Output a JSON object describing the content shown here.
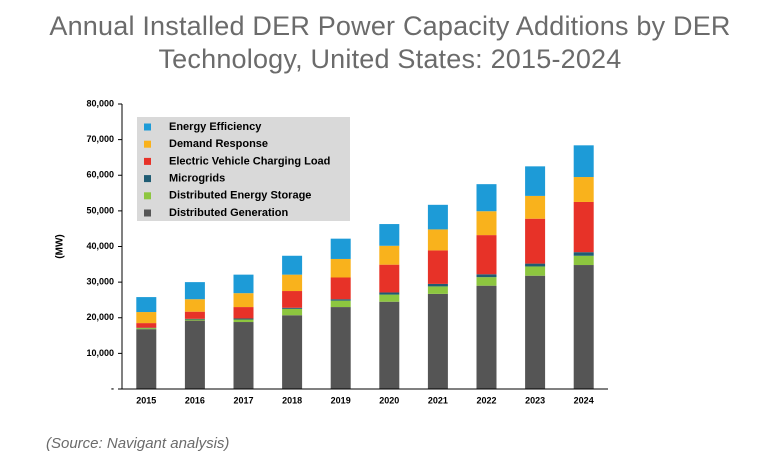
{
  "chart_data": {
    "type": "stacked_bar",
    "title": "Annual Installed DER Power Capacity Additions by DER Technology, United States: 2015-2024",
    "y_label": "(MW)",
    "source": "(Source: Navigant analysis)",
    "categories": [
      "2015",
      "2016",
      "2017",
      "2018",
      "2019",
      "2020",
      "2021",
      "2022",
      "2023",
      "2024"
    ],
    "series": [
      {
        "name": "Distributed Generation",
        "color": "#555555",
        "values": [
          16800,
          19200,
          18800,
          20700,
          23000,
          24500,
          26700,
          29000,
          31800,
          34800
        ]
      },
      {
        "name": "Distributed Energy Storage",
        "color": "#8dc63f",
        "values": [
          300,
          300,
          700,
          1800,
          1800,
          2000,
          2100,
          2400,
          2600,
          2600
        ]
      },
      {
        "name": "Microgrids",
        "color": "#1f5c73",
        "values": [
          100,
          200,
          300,
          300,
          400,
          600,
          700,
          800,
          800,
          1000
        ]
      },
      {
        "name": "Electric Vehicle Charging Load",
        "color": "#e73228",
        "values": [
          1300,
          2000,
          3200,
          4700,
          6100,
          7800,
          9400,
          11000,
          12600,
          14100
        ]
      },
      {
        "name": "Demand Response",
        "color": "#f9b21c",
        "values": [
          3100,
          3500,
          3900,
          4600,
          5200,
          5300,
          5900,
          6700,
          6400,
          7000
        ]
      },
      {
        "name": "Energy Efficiency",
        "color": "#1d9bd7",
        "values": [
          4200,
          4800,
          5200,
          5300,
          5700,
          6100,
          6900,
          7600,
          8300,
          8900
        ]
      }
    ],
    "ylim": [
      0,
      80000
    ],
    "yticks": [
      {
        "value": 0,
        "label": "-"
      },
      {
        "value": 10000,
        "label": "10,000"
      },
      {
        "value": 20000,
        "label": "20,000"
      },
      {
        "value": 30000,
        "label": "30,000"
      },
      {
        "value": 40000,
        "label": "40,000"
      },
      {
        "value": 50000,
        "label": "50,000"
      },
      {
        "value": 60000,
        "label": "60,000"
      },
      {
        "value": 70000,
        "label": "70,000"
      },
      {
        "value": 80000,
        "label": "80,000"
      }
    ],
    "legend": "upper-left"
  }
}
